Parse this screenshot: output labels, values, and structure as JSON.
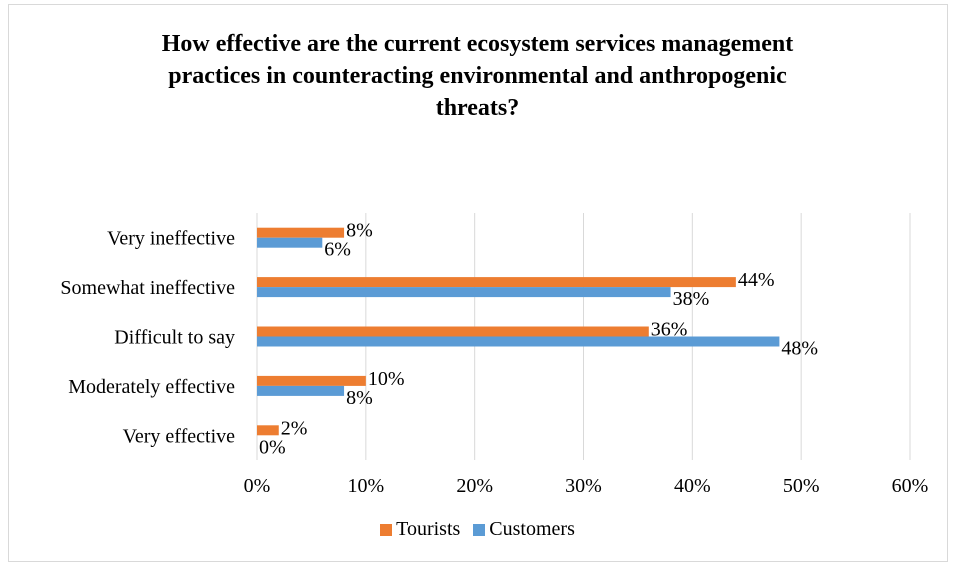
{
  "chart_data": {
    "type": "bar",
    "orientation": "horizontal",
    "title": "How effective are the current ecosystem services management practices in counteracting environmental and anthropogenic threats?",
    "title_lines": [
      "How effective are the current ecosystem services management",
      "practices in counteracting environmental and anthropogenic",
      "threats?"
    ],
    "categories": [
      "Very ineffective",
      "Somewhat ineffective",
      "Difficult to say",
      "Moderately effective",
      "Very effective"
    ],
    "series": [
      {
        "name": "Tourists",
        "color": "#ED7D31",
        "values": [
          8,
          44,
          36,
          10,
          2
        ],
        "labels": [
          "8%",
          "44%",
          "36%",
          "10%",
          "2%"
        ]
      },
      {
        "name": "Customers",
        "color": "#5B9BD5",
        "values": [
          6,
          38,
          48,
          8,
          0
        ],
        "labels": [
          "6%",
          "38%",
          "48%",
          "8%",
          "0%"
        ]
      }
    ],
    "x_ticks": [
      "0%",
      "10%",
      "20%",
      "30%",
      "40%",
      "50%",
      "60%"
    ],
    "xlim": [
      0,
      60
    ],
    "grid": true,
    "legend_position": "bottom"
  }
}
